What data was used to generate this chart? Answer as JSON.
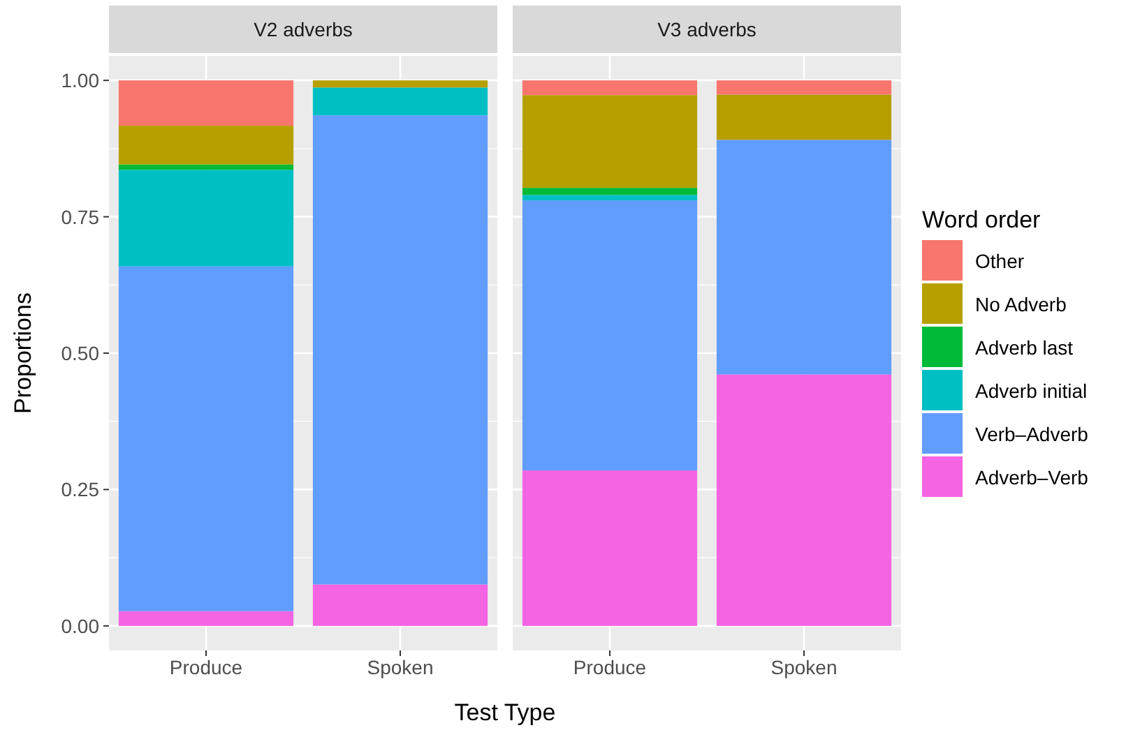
{
  "chart_data": [
    {
      "type": "bar",
      "title": "V2 adverbs",
      "xlabel": "Test Type",
      "ylabel": "Proportions",
      "categories": [
        "Produce",
        "Spoken"
      ],
      "stacked": true,
      "ylim": [
        -0.045,
        1.045
      ],
      "yticks": [
        {
          "value": 0,
          "label": "0.00"
        },
        {
          "value": 0.25,
          "label": "0.25"
        },
        {
          "value": 0.5,
          "label": "0.50"
        },
        {
          "value": 0.75,
          "label": "0.75"
        },
        {
          "value": 1,
          "label": "1.00"
        }
      ],
      "grid": true,
      "series": [
        {
          "color": "#f564e3",
          "values": [
            0.027,
            0.076
          ]
        },
        {
          "color": "#619cff",
          "values": [
            0.632,
            0.86
          ]
        },
        {
          "color": "#00bfc4",
          "values": [
            0.177,
            0.051
          ]
        },
        {
          "color": "#00ba38",
          "values": [
            0.01,
            0
          ]
        },
        {
          "color": "#b79f00",
          "values": [
            0.071,
            0.013
          ]
        },
        {
          "color": "#f8766d",
          "values": [
            0.083,
            0
          ]
        }
      ]
    },
    {
      "type": "bar",
      "title": "V3 adverbs",
      "categories": [
        "Produce",
        "Spoken"
      ],
      "stacked": true,
      "ylim": [
        -0.045,
        1.045
      ],
      "yticks": [
        {
          "value": 0,
          "label": null
        },
        {
          "value": 0.25,
          "label": null
        },
        {
          "value": 0.5,
          "label": null
        },
        {
          "value": 0.75,
          "label": null
        },
        {
          "value": 1,
          "label": null
        }
      ],
      "tick_labels": "x",
      "grid": true,
      "legend": "right",
      "legend_title": "Word order",
      "series": [
        {
          "name": "Adverb–Verb",
          "color": "#f564e3",
          "values": [
            0.285,
            0.461
          ]
        },
        {
          "name": "Verb–Adverb",
          "color": "#619cff",
          "values": [
            0.495,
            0.43
          ]
        },
        {
          "name": "Adverb initial",
          "color": "#00bfc4",
          "values": [
            0.01,
            0
          ]
        },
        {
          "name": "Adverb last",
          "color": "#00ba38",
          "values": [
            0.013,
            0
          ]
        },
        {
          "name": "No Adverb",
          "color": "#b79f00",
          "values": [
            0.17,
            0.083
          ]
        },
        {
          "name": "Other",
          "color": "#f8766d",
          "values": [
            0.027,
            0.026
          ]
        }
      ]
    }
  ]
}
